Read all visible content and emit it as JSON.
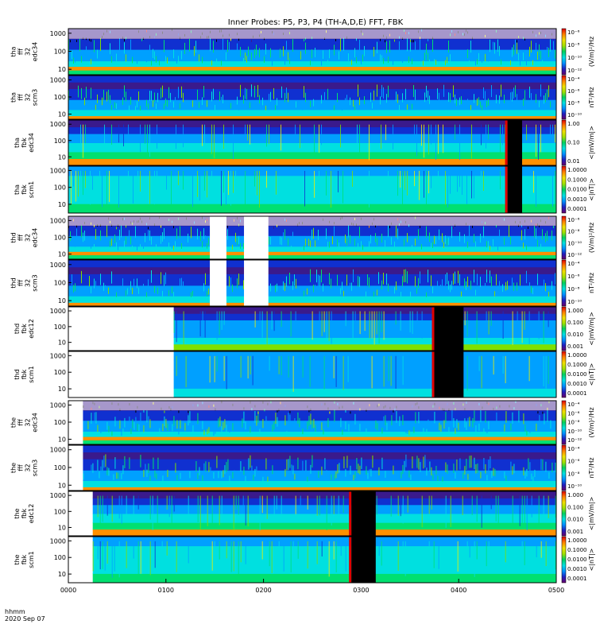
{
  "chart_data": {
    "type": "heatmap",
    "title": "Inner Probes: P5, P3, P4 (TH-A,D,E) FFT, FBK",
    "x_tick_labels": [
      "0000",
      "0100",
      "0200",
      "0300",
      "0400",
      "0500"
    ],
    "x_footer": [
      "hhmm",
      "2020 Sep 07"
    ],
    "x_range_hours": [
      0,
      5
    ],
    "y_scale": "log",
    "colormap": "rainbow",
    "panels": [
      {
        "label": [
          "tha",
          "fff",
          "32",
          "edc34"
        ],
        "y_ticks": [
          "10",
          "100",
          "1000"
        ],
        "y_range": [
          5,
          1800
        ],
        "cb_ticks": [
          "10⁻⁶",
          "10⁻⁸",
          "10⁻¹⁰",
          "10⁻¹²"
        ],
        "cb_unit": "(V/m)²/Hz",
        "kind": "fff_e",
        "data_start_h": 0.0,
        "gaps": []
      },
      {
        "label": [
          "tha",
          "fff",
          "32",
          "scm3"
        ],
        "y_ticks": [
          "10",
          "100",
          "1000"
        ],
        "y_range": [
          5,
          1800
        ],
        "cb_ticks": [
          "10⁻⁴",
          "10⁻⁶",
          "10⁻⁸",
          "10⁻¹⁰"
        ],
        "cb_unit": "nT²/Hz",
        "kind": "fff_b",
        "data_start_h": 0.0,
        "gaps": []
      },
      {
        "label": [
          "tha",
          "fbk",
          "edc34"
        ],
        "y_ticks": [
          "10",
          "100",
          "1000"
        ],
        "y_range": [
          3,
          1800
        ],
        "cb_ticks": [
          "1.00",
          "0.10",
          "0.01"
        ],
        "cb_unit": "<|mV/m|>",
        "kind": "fbk_e",
        "data_start_h": 0.0,
        "gaps": [],
        "black_band": [
          4.5,
          4.65
        ]
      },
      {
        "label": [
          "tha",
          "fbk",
          "scm1"
        ],
        "y_ticks": [
          "10",
          "100",
          "1000"
        ],
        "y_range": [
          3,
          1800
        ],
        "cb_ticks": [
          "1.0000",
          "0.1000",
          "0.0100",
          "0.0010",
          "0.0001"
        ],
        "cb_unit": "<|nT|>",
        "kind": "fbk_b",
        "data_start_h": 0.0,
        "gaps": [],
        "black_band": [
          4.5,
          4.65
        ]
      },
      {
        "label": [
          "thd",
          "fff",
          "32",
          "edc34"
        ],
        "y_ticks": [
          "10",
          "100",
          "1000"
        ],
        "y_range": [
          5,
          1800
        ],
        "cb_ticks": [
          "10⁻⁶",
          "10⁻⁸",
          "10⁻¹⁰",
          "10⁻¹²"
        ],
        "cb_unit": "(V/m)²/Hz",
        "kind": "fff_e",
        "data_start_h": 0.0,
        "gaps": [
          [
            1.45,
            1.62
          ],
          [
            1.8,
            2.05
          ]
        ]
      },
      {
        "label": [
          "thd",
          "fff",
          "32",
          "scm3"
        ],
        "y_ticks": [
          "10",
          "100",
          "1000"
        ],
        "y_range": [
          5,
          1800
        ],
        "cb_ticks": [
          "10⁻⁴",
          "10⁻⁶",
          "10⁻⁸",
          "10⁻¹⁰"
        ],
        "cb_unit": "nT²/Hz",
        "kind": "fff_b",
        "data_start_h": 0.0,
        "gaps": [
          [
            1.45,
            1.62
          ],
          [
            1.8,
            2.05
          ]
        ]
      },
      {
        "label": [
          "thd",
          "fbk",
          "edc12"
        ],
        "y_ticks": [
          "10",
          "100",
          "1000"
        ],
        "y_range": [
          3,
          1800
        ],
        "cb_ticks": [
          "1.000",
          "0.100",
          "0.010",
          "0.001"
        ],
        "cb_unit": "<|mV/m|>",
        "kind": "fbk_e2",
        "data_start_h": 1.08,
        "gaps": [],
        "black_band": [
          3.75,
          4.05
        ]
      },
      {
        "label": [
          "thd",
          "fbk",
          "scm1"
        ],
        "y_ticks": [
          "10",
          "100",
          "1000"
        ],
        "y_range": [
          3,
          1800
        ],
        "cb_ticks": [
          "1.0000",
          "0.1000",
          "0.0100",
          "0.0010",
          "0.0001"
        ],
        "cb_unit": "<|nT|>",
        "kind": "fbk_b2",
        "data_start_h": 1.08,
        "gaps": [],
        "black_band": [
          3.75,
          4.05
        ]
      },
      {
        "label": [
          "the",
          "fff",
          "32",
          "edc34"
        ],
        "y_ticks": [
          "10",
          "100",
          "1000"
        ],
        "y_range": [
          5,
          1800
        ],
        "cb_ticks": [
          "10⁻⁴",
          "10⁻⁶",
          "10⁻⁸",
          "10⁻¹⁰",
          "10⁻¹²"
        ],
        "cb_unit": "(V/m)²/Hz",
        "kind": "fff_e",
        "data_start_h": 0.15,
        "gaps": []
      },
      {
        "label": [
          "the",
          "fff",
          "32",
          "scm3"
        ],
        "y_ticks": [
          "10",
          "100",
          "1000"
        ],
        "y_range": [
          5,
          1800
        ],
        "cb_ticks": [
          "10⁻⁴",
          "10⁻⁶",
          "10⁻⁸",
          "10⁻¹⁰"
        ],
        "cb_unit": "nT²/Hz",
        "kind": "fff_b",
        "data_start_h": 0.15,
        "gaps": []
      },
      {
        "label": [
          "the",
          "fbk",
          "edc12"
        ],
        "y_ticks": [
          "10",
          "100",
          "1000"
        ],
        "y_range": [
          3,
          1800
        ],
        "cb_ticks": [
          "1.000",
          "0.100",
          "0.010",
          "0.001"
        ],
        "cb_unit": "<|mV/m|>",
        "kind": "fbk_e",
        "data_start_h": 0.25,
        "gaps": [],
        "black_band": [
          2.9,
          3.15
        ]
      },
      {
        "label": [
          "the",
          "fbk",
          "scm1"
        ],
        "y_ticks": [
          "10",
          "100",
          "1000"
        ],
        "y_range": [
          3,
          1800
        ],
        "cb_ticks": [
          "1.0000",
          "0.1000",
          "0.0100",
          "0.0010",
          "0.0001"
        ],
        "cb_unit": "<|nT|>",
        "kind": "fbk_b",
        "data_start_h": 0.25,
        "gaps": [],
        "black_band": [
          2.9,
          3.15
        ]
      }
    ]
  }
}
